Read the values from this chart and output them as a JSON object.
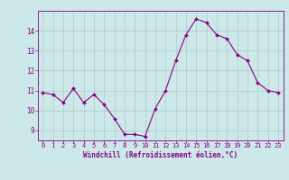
{
  "x": [
    0,
    1,
    2,
    3,
    4,
    5,
    6,
    7,
    8,
    9,
    10,
    11,
    12,
    13,
    14,
    15,
    16,
    17,
    18,
    19,
    20,
    21,
    22,
    23
  ],
  "y": [
    10.9,
    10.8,
    10.4,
    11.1,
    10.4,
    10.8,
    10.3,
    9.6,
    8.8,
    8.8,
    8.7,
    10.1,
    11.0,
    12.5,
    13.8,
    14.6,
    14.4,
    13.8,
    13.6,
    12.8,
    12.5,
    11.4,
    11.0,
    10.9
  ],
  "line_color": "#880088",
  "marker": "D",
  "marker_size": 2.0,
  "bg_color": "#cce8e8",
  "grid_color": "#aacccc",
  "xlabel": "Windchill (Refroidissement éolien,°C)",
  "xlabel_color": "#880088",
  "tick_color": "#880088",
  "ylim": [
    8.5,
    15.0
  ],
  "xlim": [
    -0.5,
    23.5
  ],
  "yticks": [
    9,
    10,
    11,
    12,
    13,
    14
  ],
  "xticks": [
    0,
    1,
    2,
    3,
    4,
    5,
    6,
    7,
    8,
    9,
    10,
    11,
    12,
    13,
    14,
    15,
    16,
    17,
    18,
    19,
    20,
    21,
    22,
    23
  ]
}
